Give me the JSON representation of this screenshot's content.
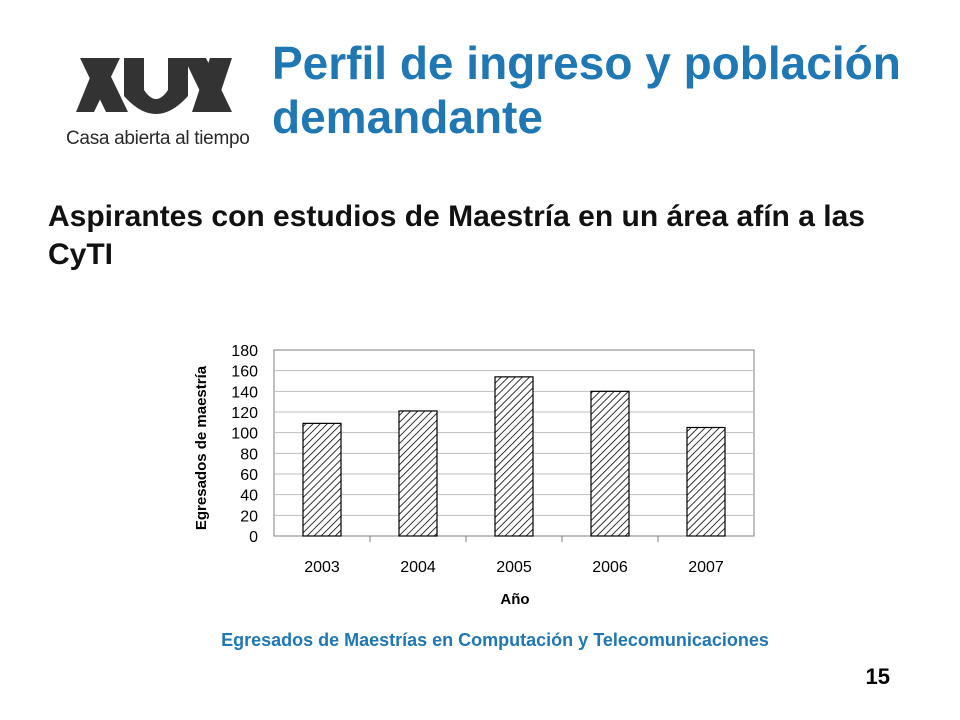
{
  "header": {
    "logo_text": "Casa abierta al tiempo",
    "title": "Perfil de ingreso y población demandante"
  },
  "subtitle": "Aspirantes con estudios de Maestría en un área afín a las CyTI",
  "caption": "Egresados de Maestrías en Computación y Telecomunicaciones",
  "page_number": "15",
  "colors": {
    "title": "#1f77b4",
    "bar_hatch": "#000000",
    "grid": "#bfbfbf"
  },
  "chart_data": {
    "type": "bar",
    "categories": [
      "2003",
      "2004",
      "2005",
      "2006",
      "2007"
    ],
    "values": [
      109,
      121,
      154,
      140,
      105
    ],
    "xlabel": "Año",
    "ylabel": "Egresados de maestría",
    "ylim": [
      0,
      180
    ],
    "yticks": [
      0,
      20,
      40,
      60,
      80,
      100,
      120,
      140,
      160,
      180
    ],
    "grid": true,
    "legend": "none",
    "bar_fill": "diagonal-hatch"
  }
}
